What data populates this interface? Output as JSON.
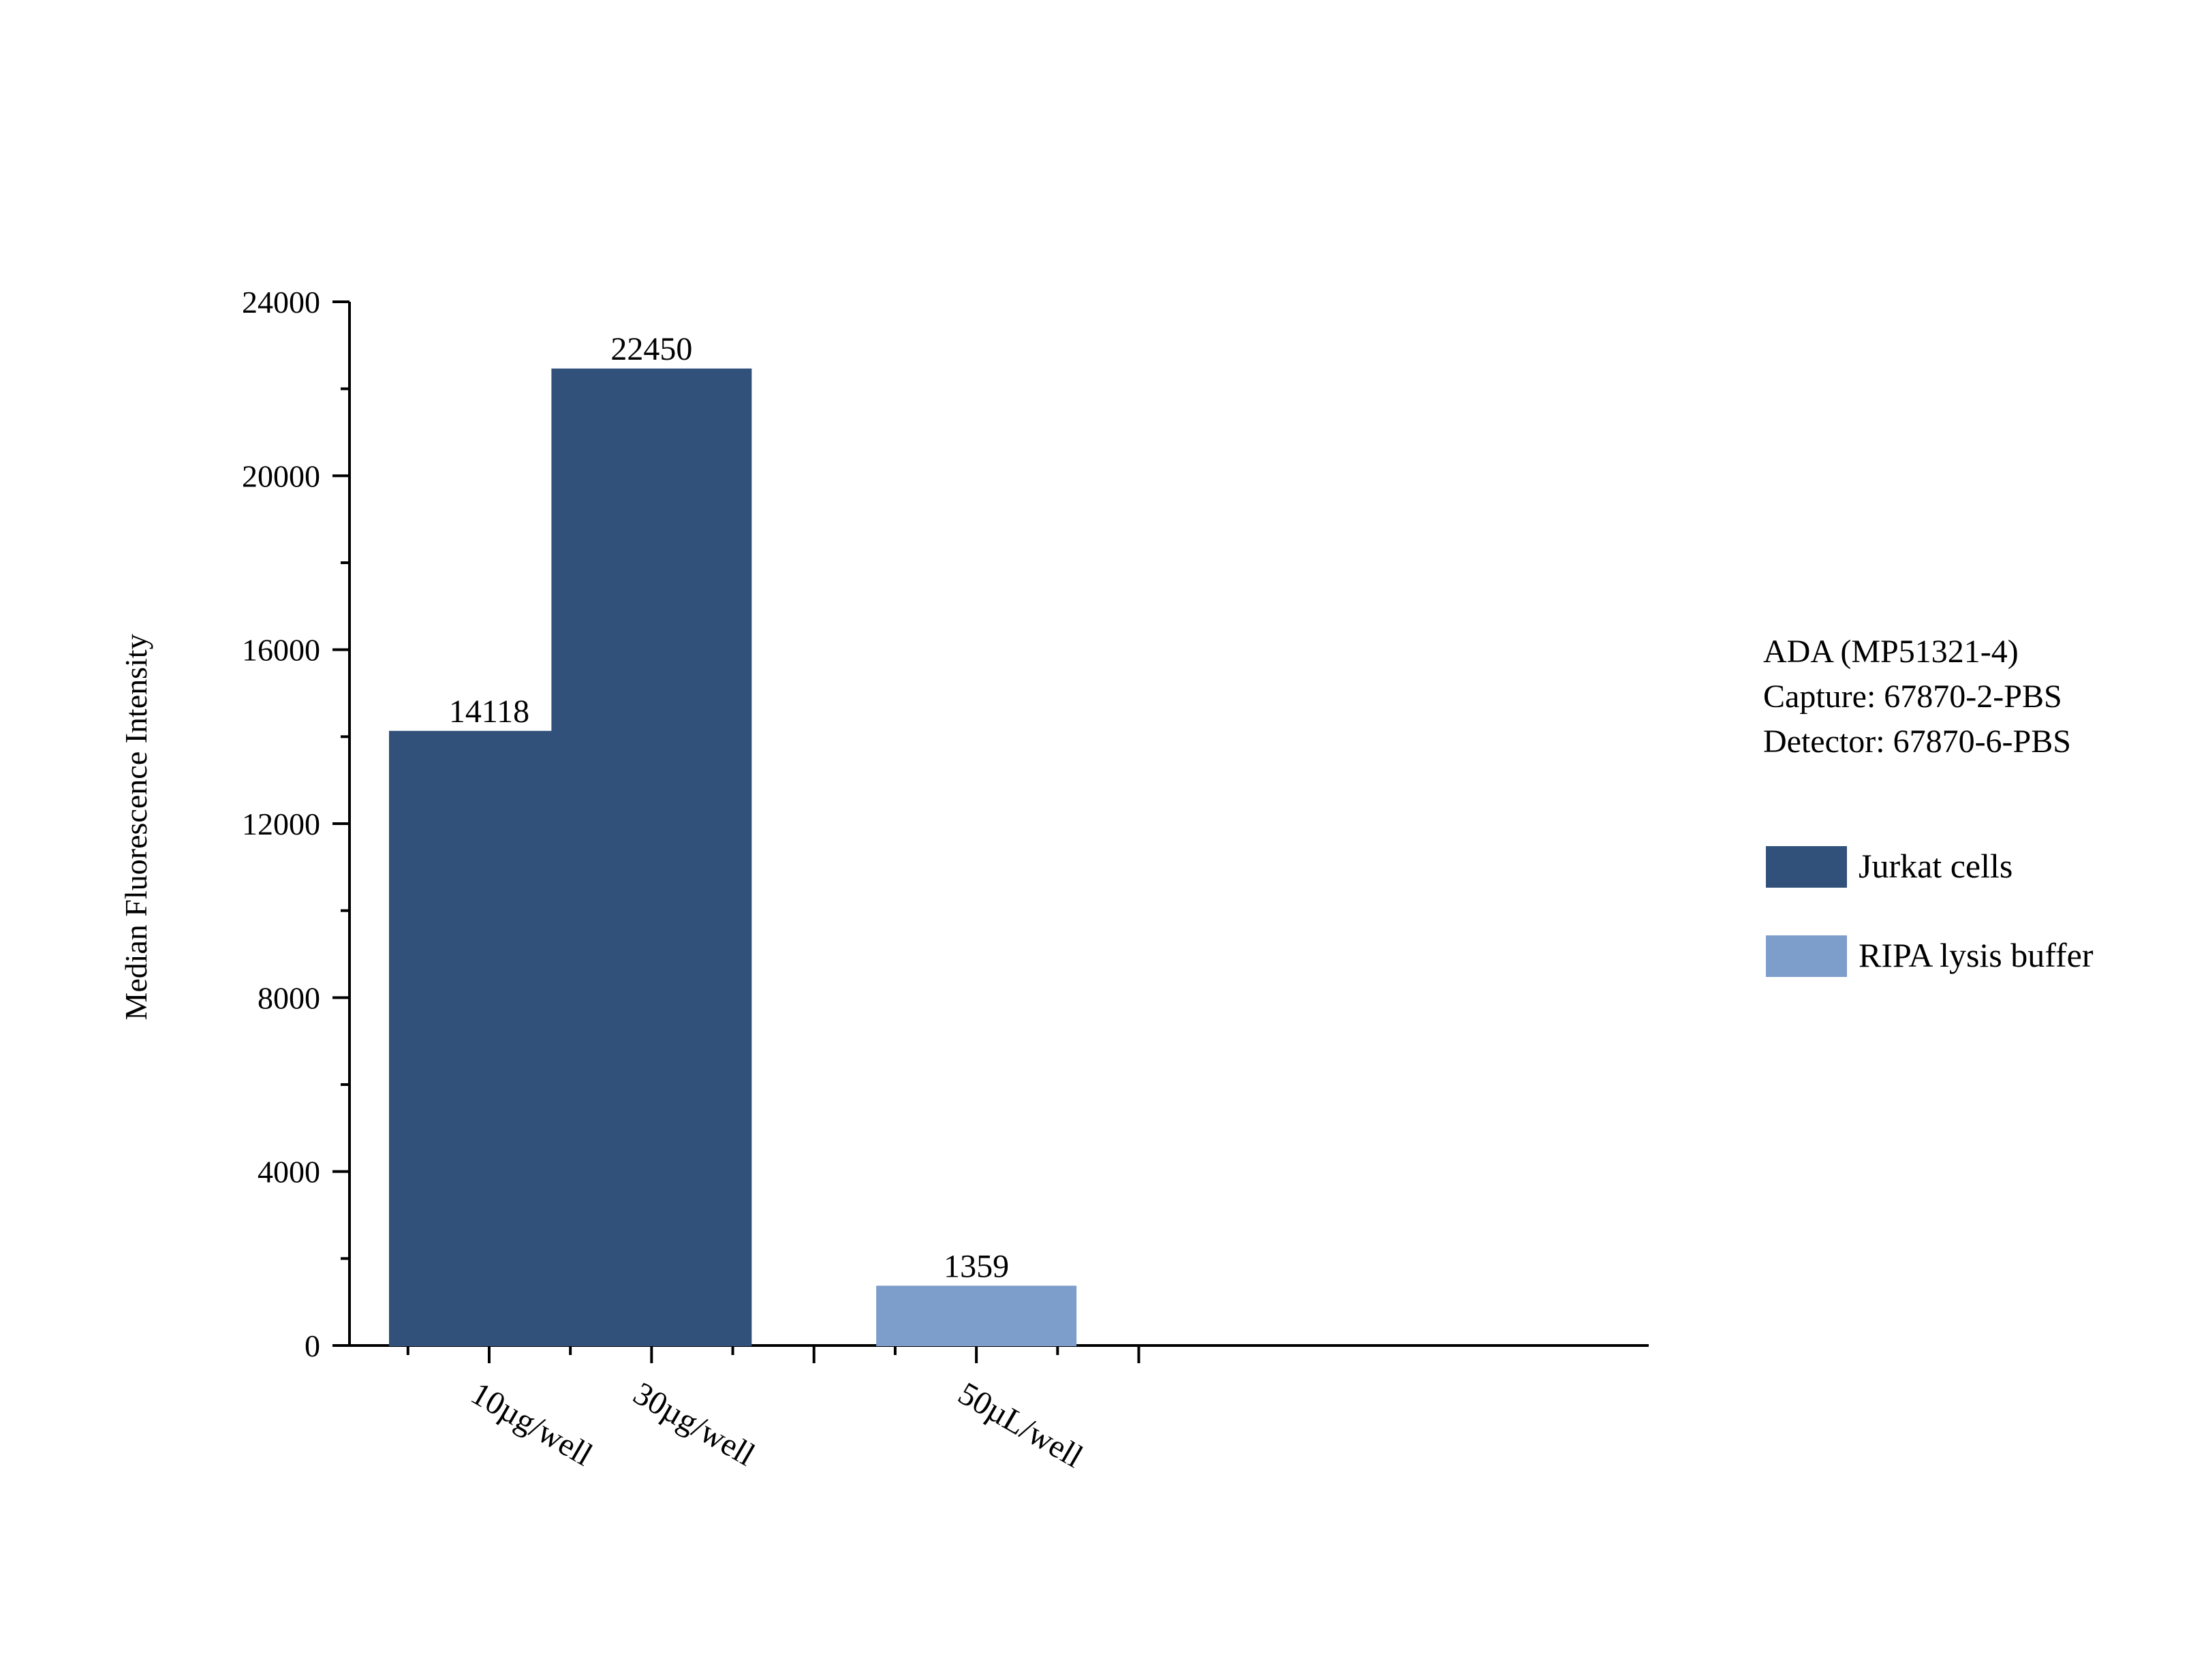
{
  "chart_data": {
    "type": "bar",
    "title": "",
    "xlabel": "",
    "ylabel": "Median Fluorescence Intensity",
    "ylim": [
      0,
      24000
    ],
    "y_ticks": [
      0,
      4000,
      8000,
      12000,
      16000,
      20000,
      24000
    ],
    "y_tick_labels": [
      "0",
      "4000",
      "8000",
      "12000",
      "16000",
      "20000",
      "24000"
    ],
    "grid": false,
    "legend_position": "right",
    "x_slots": 8,
    "bars": [
      {
        "category": "10µg/well",
        "slot": 1,
        "value": 14118,
        "label": "14118",
        "series": "Jurkat cells"
      },
      {
        "category": "30µg/well",
        "slot": 2,
        "value": 22450,
        "label": "22450",
        "series": "Jurkat cells"
      },
      {
        "category": "50µL/well",
        "slot": 4,
        "value": 1359,
        "label": "1359",
        "series": "RIPA lysis buffer"
      }
    ],
    "series": [
      {
        "name": "Jurkat cells",
        "color": "#31507a"
      },
      {
        "name": "RIPA lysis buffer",
        "color": "#7d9dcb"
      }
    ],
    "annotation_lines": [
      "ADA (MP51321-4)",
      "Capture: 67870-2-PBS",
      "Detector: 67870-6-PBS"
    ]
  }
}
